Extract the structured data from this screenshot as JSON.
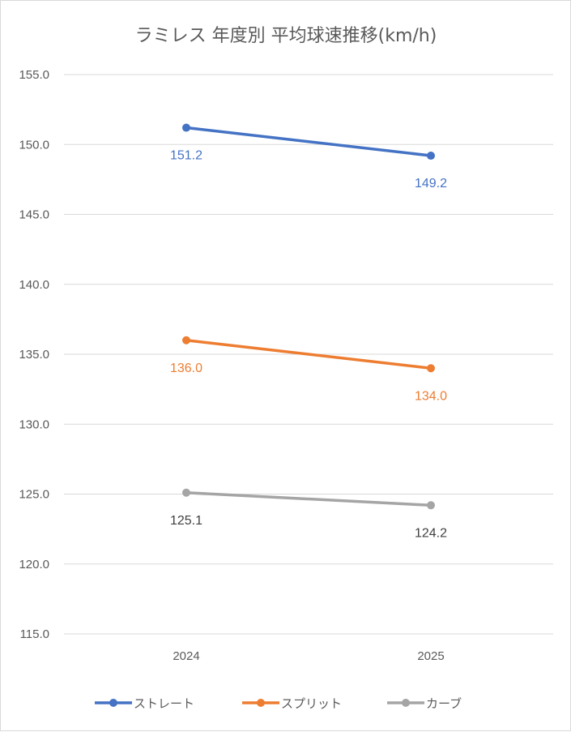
{
  "chart_data": {
    "type": "line",
    "title": "ラミレス 年度別 平均球速推移(km/h)",
    "categories": [
      "2024",
      "2025"
    ],
    "ylim": [
      115,
      155
    ],
    "y_ticks": [
      "115.0",
      "120.0",
      "125.0",
      "130.0",
      "135.0",
      "140.0",
      "145.0",
      "150.0",
      "155.0"
    ],
    "grid": true,
    "legend_position": "bottom",
    "series": [
      {
        "name": "ストレート",
        "values": [
          151.2,
          149.2
        ],
        "labels": [
          "151.2",
          "149.2"
        ],
        "color": "#4472C4",
        "label_color": "#4472C4"
      },
      {
        "name": "スプリット",
        "values": [
          136.0,
          134.0
        ],
        "labels": [
          "136.0",
          "134.0"
        ],
        "color": "#ED7D31",
        "label_color": "#ED7D31"
      },
      {
        "name": "カーブ",
        "values": [
          125.1,
          124.2
        ],
        "labels": [
          "125.1",
          "124.2"
        ],
        "color": "#A5A5A5",
        "label_color": "#404040"
      }
    ]
  }
}
